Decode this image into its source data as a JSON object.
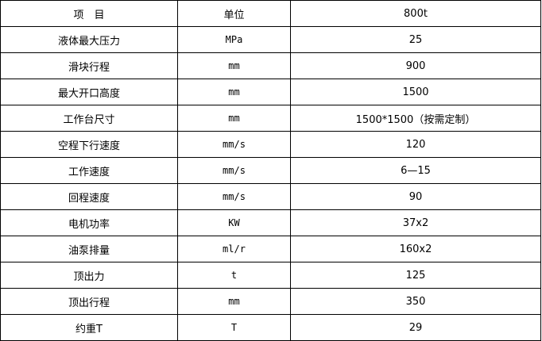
{
  "rows": [
    [
      "项　目",
      "单位",
      "800t"
    ],
    [
      "液体最大压力",
      "MPa",
      "25"
    ],
    [
      "滑块行程",
      "mm",
      "900"
    ],
    [
      "最大开口高度",
      "mm",
      "1500"
    ],
    [
      "工作台尺寸",
      "mm",
      "1500*1500（按需定制）"
    ],
    [
      "空程下行速度",
      "mm/s",
      "120"
    ],
    [
      "工作速度",
      "mm/s",
      "6—15"
    ],
    [
      "回程速度",
      "mm/s",
      "90"
    ],
    [
      "电机功率",
      "KW",
      "37x2"
    ],
    [
      "油泵排量",
      "ml/r",
      "160x2"
    ],
    [
      "顶出力",
      "t",
      "125"
    ],
    [
      "顶出行程",
      "mm",
      "350"
    ],
    [
      "约重T",
      "T",
      "29"
    ]
  ]
}
